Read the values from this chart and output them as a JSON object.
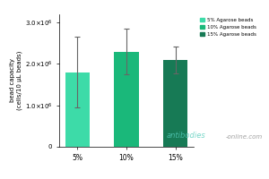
{
  "categories": [
    "5%",
    "10%",
    "15%"
  ],
  "values": [
    1800000.0,
    2300000.0,
    2100000.0
  ],
  "errors": [
    850000.0,
    550000.0,
    320000.0
  ],
  "bar_colors": [
    "#3ddba8",
    "#1ab87a",
    "#177a55"
  ],
  "ylabel": "bead capacity\n(cells/10 µL beads)",
  "ylim": [
    0,
    3200000.0
  ],
  "yticks": [
    0,
    1000000.0,
    2000000.0,
    3000000.0
  ],
  "legend_labels": [
    "5% Agarose beads",
    "10% Agarose beads",
    "15% Agarose beads"
  ],
  "legend_colors": [
    "#3ddba8",
    "#1ab87a",
    "#177a55"
  ],
  "watermark1": "antibodies",
  "watermark2": "-online.com",
  "background_color": "#ffffff"
}
